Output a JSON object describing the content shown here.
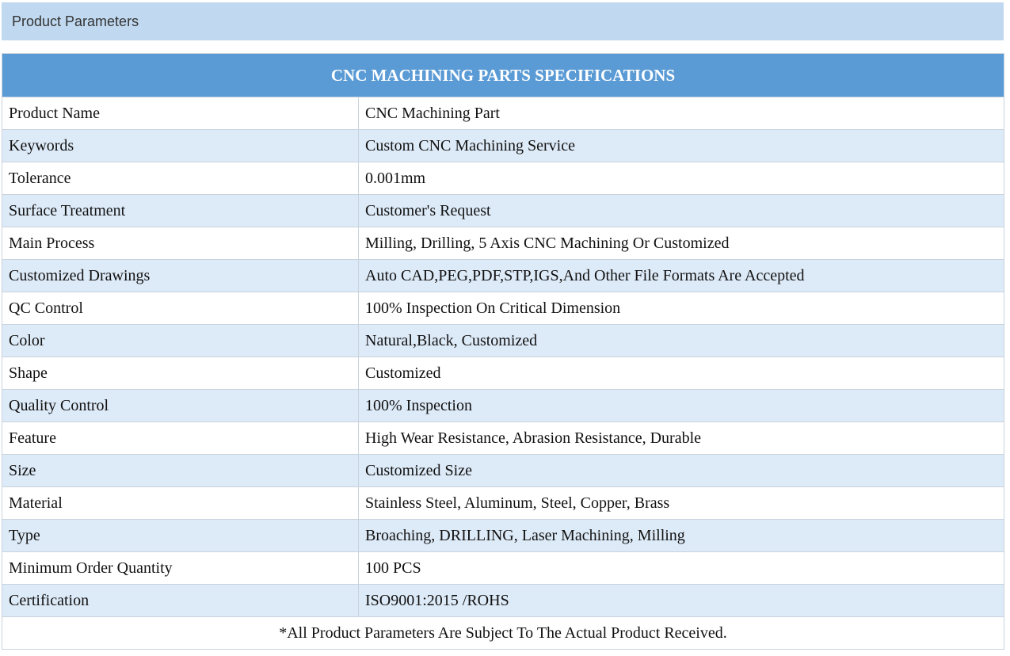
{
  "section": {
    "title": "Product Parameters"
  },
  "table": {
    "title": "CNC MACHINING PARTS SPECIFICATIONS",
    "rows": [
      {
        "label": "Product Name",
        "value": "CNC Machining Part"
      },
      {
        "label": "Keywords",
        "value": "Custom CNC Machining Service"
      },
      {
        "label": "Tolerance",
        "value": "0.001mm"
      },
      {
        "label": "Surface Treatment",
        "value": "Customer's Request"
      },
      {
        "label": "Main Process",
        "value": "Milling, Drilling, 5 Axis CNC Machining Or Customized"
      },
      {
        "label": "Customized Drawings",
        "value": "Auto CAD,PEG,PDF,STP,IGS,And Other File Formats Are Accepted"
      },
      {
        "label": "QC Control",
        "value": "100% Inspection On Critical Dimension"
      },
      {
        "label": "Color",
        "value": "Natural,Black, Customized"
      },
      {
        "label": "Shape",
        "value": "Customized"
      },
      {
        "label": "Quality Control",
        "value": "100% Inspection"
      },
      {
        "label": "Feature",
        "value": "High Wear Resistance, Abrasion Resistance, Durable"
      },
      {
        "label": "Size",
        "value": "Customized Size"
      },
      {
        "label": "Material",
        "value": "Stainless Steel, Aluminum, Steel, Copper, Brass"
      },
      {
        "label": "Type",
        "value": "Broaching, DRILLING, Laser Machining, Milling"
      },
      {
        "label": "Minimum Order Quantity",
        "value": "100 PCS"
      },
      {
        "label": "Certification",
        "value": "ISO9001:2015 /ROHS"
      }
    ],
    "footnote": "*All Product Parameters Are Subject To The Actual Product Received."
  },
  "colors": {
    "section_bg": "#c0d9f0",
    "table_header_bg": "#5b9bd5",
    "row_stripe_bg": "#ddeaf7",
    "border": "#c9d3dd"
  }
}
